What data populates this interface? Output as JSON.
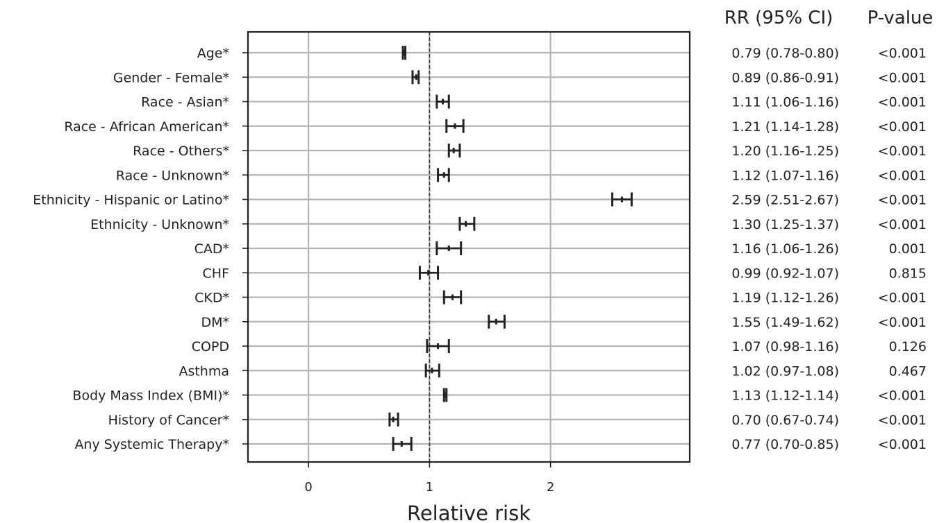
{
  "chart_data": {
    "type": "forest",
    "xlabel": "Relative risk",
    "xlim": [
      -0.5,
      3.15
    ],
    "xticks": [
      0,
      1,
      2
    ],
    "reference_line": 1,
    "grid": true,
    "table_headers": {
      "rr": "RR (95% CI)",
      "p": "P-value"
    },
    "rows": [
      {
        "label": "Age*",
        "rr": 0.79,
        "lo": 0.78,
        "hi": 0.8,
        "rr_text": "0.79 (0.78-0.80)",
        "p_text": "<0.001"
      },
      {
        "label": "Gender - Female*",
        "rr": 0.89,
        "lo": 0.86,
        "hi": 0.91,
        "rr_text": "0.89 (0.86-0.91)",
        "p_text": "<0.001"
      },
      {
        "label": "Race - Asian*",
        "rr": 1.11,
        "lo": 1.06,
        "hi": 1.16,
        "rr_text": "1.11 (1.06-1.16)",
        "p_text": "<0.001"
      },
      {
        "label": "Race - African American*",
        "rr": 1.21,
        "lo": 1.14,
        "hi": 1.28,
        "rr_text": "1.21 (1.14-1.28)",
        "p_text": "<0.001"
      },
      {
        "label": "Race - Others*",
        "rr": 1.2,
        "lo": 1.16,
        "hi": 1.25,
        "rr_text": "1.20 (1.16-1.25)",
        "p_text": "<0.001"
      },
      {
        "label": "Race - Unknown*",
        "rr": 1.12,
        "lo": 1.07,
        "hi": 1.16,
        "rr_text": "1.12 (1.07-1.16)",
        "p_text": "<0.001"
      },
      {
        "label": "Ethnicity - Hispanic or Latino*",
        "rr": 2.59,
        "lo": 2.51,
        "hi": 2.67,
        "rr_text": "2.59 (2.51-2.67)",
        "p_text": "<0.001"
      },
      {
        "label": "Ethnicity - Unknown*",
        "rr": 1.3,
        "lo": 1.25,
        "hi": 1.37,
        "rr_text": "1.30 (1.25-1.37)",
        "p_text": "<0.001"
      },
      {
        "label": "CAD*",
        "rr": 1.16,
        "lo": 1.06,
        "hi": 1.26,
        "rr_text": "1.16 (1.06-1.26)",
        "p_text": "0.001"
      },
      {
        "label": "CHF",
        "rr": 0.99,
        "lo": 0.92,
        "hi": 1.07,
        "rr_text": "0.99 (0.92-1.07)",
        "p_text": "0.815"
      },
      {
        "label": "CKD*",
        "rr": 1.19,
        "lo": 1.12,
        "hi": 1.26,
        "rr_text": "1.19 (1.12-1.26)",
        "p_text": "<0.001"
      },
      {
        "label": "DM*",
        "rr": 1.55,
        "lo": 1.49,
        "hi": 1.62,
        "rr_text": "1.55 (1.49-1.62)",
        "p_text": "<0.001"
      },
      {
        "label": "COPD",
        "rr": 1.07,
        "lo": 0.98,
        "hi": 1.16,
        "rr_text": "1.07 (0.98-1.16)",
        "p_text": "0.126"
      },
      {
        "label": "Asthma",
        "rr": 1.02,
        "lo": 0.97,
        "hi": 1.08,
        "rr_text": "1.02 (0.97-1.08)",
        "p_text": "0.467"
      },
      {
        "label": "Body Mass Index (BMI)*",
        "rr": 1.13,
        "lo": 1.12,
        "hi": 1.14,
        "rr_text": "1.13 (1.12-1.14)",
        "p_text": "<0.001"
      },
      {
        "label": "History of Cancer*",
        "rr": 0.7,
        "lo": 0.67,
        "hi": 0.74,
        "rr_text": "0.70 (0.67-0.74)",
        "p_text": "<0.001"
      },
      {
        "label": "Any Systemic Therapy*",
        "rr": 0.77,
        "lo": 0.7,
        "hi": 0.85,
        "rr_text": "0.77 (0.70-0.85)",
        "p_text": "<0.001"
      }
    ]
  }
}
